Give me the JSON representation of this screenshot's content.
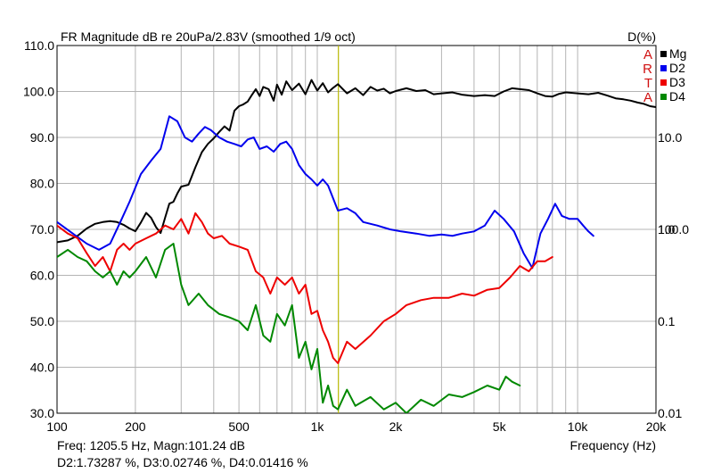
{
  "chart_data": {
    "type": "line",
    "title": "FR Magnitude dB re 20uPa/2.83V (smoothed 1/9 oct)",
    "right_axis_title": "D(%)",
    "xlabel": "Frequency (Hz)",
    "x_scale": "log",
    "xlim": [
      100,
      20000
    ],
    "ylim": [
      30,
      110
    ],
    "y2_scale": "log",
    "y2lim": [
      0.01,
      100
    ],
    "x_ticks": [
      {
        "value": 100,
        "label": "100"
      },
      {
        "value": 200,
        "label": "200"
      },
      {
        "value": 500,
        "label": "500"
      },
      {
        "value": 1000,
        "label": "1k"
      },
      {
        "value": 2000,
        "label": "2k"
      },
      {
        "value": 5000,
        "label": "5k"
      },
      {
        "value": 10000,
        "label": "10k"
      },
      {
        "value": 20000,
        "label": "20k"
      }
    ],
    "y_ticks": [
      {
        "value": 30,
        "label": "30.0"
      },
      {
        "value": 40,
        "label": "40.0"
      },
      {
        "value": 50,
        "label": "50.0"
      },
      {
        "value": 60,
        "label": "60.0"
      },
      {
        "value": 70,
        "label": "70.0"
      },
      {
        "value": 80,
        "label": "80.0"
      },
      {
        "value": 90,
        "label": "90.0"
      },
      {
        "value": 100,
        "label": "100.0"
      },
      {
        "value": 110,
        "label": "110.0"
      }
    ],
    "y2_ticks": [
      {
        "value": 0.01,
        "label": "0.01"
      },
      {
        "value": 0.1,
        "label": "0.1"
      },
      {
        "value": 1,
        "label": "1.0"
      },
      {
        "value": 10,
        "label": "10.0"
      },
      {
        "value": 100,
        "label": "100.0"
      }
    ],
    "cursor_x": 1205.5,
    "watermark": "ARTA",
    "grid": true,
    "legend_position": "top-right",
    "series": [
      {
        "name": "Mg",
        "color": "#000000",
        "axis": "left",
        "x": [
          100,
          110,
          120,
          130,
          140,
          150,
          160,
          170,
          180,
          190,
          200,
          210,
          220,
          230,
          240,
          250,
          260,
          270,
          280,
          290,
          300,
          320,
          340,
          360,
          380,
          400,
          420,
          440,
          460,
          480,
          500,
          520,
          540,
          560,
          580,
          600,
          620,
          650,
          680,
          700,
          730,
          760,
          800,
          850,
          900,
          950,
          1000,
          1050,
          1100,
          1150,
          1200,
          1300,
          1400,
          1500,
          1600,
          1700,
          1800,
          1900,
          2000,
          2200,
          2400,
          2600,
          2800,
          3000,
          3300,
          3600,
          4000,
          4400,
          4800,
          5200,
          5600,
          6000,
          6500,
          7000,
          7500,
          8000,
          8500,
          9000,
          10000,
          11000,
          12000,
          13000,
          14000,
          15000,
          16000,
          17000,
          18000,
          19000,
          20000
        ],
        "y": [
          67.2,
          67.6,
          68.6,
          70.2,
          71.2,
          71.6,
          71.8,
          71.6,
          71.0,
          70.2,
          69.6,
          71.5,
          73.6,
          72.5,
          70.5,
          69.2,
          72.5,
          75.6,
          76.0,
          77.8,
          79.3,
          79.7,
          83.5,
          86.8,
          88.6,
          89.8,
          91.2,
          92.4,
          91.5,
          95.8,
          96.8,
          97.2,
          97.8,
          99.2,
          100.5,
          99.0,
          101.0,
          100.5,
          98.0,
          101.5,
          99.3,
          102.2,
          100.3,
          101.7,
          99.4,
          102.5,
          100.2,
          101.8,
          99.8,
          100.8,
          101.6,
          99.6,
          100.7,
          99.2,
          101.0,
          100.2,
          100.6,
          99.6,
          100.1,
          100.7,
          100.1,
          100.3,
          99.4,
          99.6,
          99.8,
          99.3,
          99.0,
          99.2,
          99.0,
          100.0,
          100.7,
          100.5,
          100.3,
          99.6,
          99.0,
          98.9,
          99.5,
          99.8,
          99.6,
          99.4,
          99.7,
          99.1,
          98.5,
          98.3,
          98.0,
          97.6,
          97.3,
          96.8,
          96.6
        ]
      },
      {
        "name": "D2",
        "color": "#0000ee",
        "axis": "right",
        "x": [
          100,
          115,
          130,
          145,
          160,
          175,
          190,
          210,
          230,
          250,
          270,
          290,
          310,
          330,
          350,
          370,
          390,
          420,
          450,
          480,
          510,
          540,
          570,
          600,
          640,
          680,
          720,
          760,
          800,
          850,
          900,
          950,
          1000,
          1050,
          1100,
          1200,
          1300,
          1400,
          1500,
          1700,
          1900,
          2100,
          2400,
          2700,
          3000,
          3300,
          3600,
          4000,
          4400,
          4800,
          5200,
          5700,
          6200,
          6700,
          7200,
          7700,
          8200,
          8700,
          9300,
          10000,
          10500,
          11000,
          11500
        ],
        "y": [
          1.2,
          0.9,
          0.7,
          0.6,
          0.7,
          1.2,
          2.0,
          4.0,
          5.6,
          7.5,
          17.0,
          15.0,
          10.0,
          9.0,
          11.0,
          13.0,
          12.0,
          10.0,
          9.0,
          8.5,
          8.0,
          9.5,
          10.0,
          7.5,
          8.0,
          7.0,
          8.5,
          9.0,
          7.5,
          5.0,
          4.0,
          3.5,
          3.0,
          3.5,
          3.0,
          1.6,
          1.7,
          1.5,
          1.2,
          1.1,
          1.0,
          0.95,
          0.9,
          0.85,
          0.88,
          0.85,
          0.9,
          0.95,
          1.1,
          1.6,
          1.3,
          0.95,
          0.55,
          0.38,
          0.9,
          1.3,
          1.9,
          1.4,
          1.3,
          1.3,
          1.1,
          0.95,
          0.85
        ]
      },
      {
        "name": "D3",
        "color": "#ee0000",
        "axis": "right",
        "x": [
          100,
          110,
          120,
          130,
          140,
          150,
          160,
          170,
          180,
          190,
          200,
          220,
          240,
          260,
          280,
          300,
          320,
          340,
          360,
          380,
          400,
          430,
          460,
          500,
          540,
          580,
          620,
          660,
          700,
          750,
          800,
          850,
          900,
          950,
          1000,
          1050,
          1100,
          1150,
          1200,
          1300,
          1400,
          1600,
          1800,
          2000,
          2200,
          2500,
          2800,
          3200,
          3600,
          4000,
          4500,
          5000,
          5500,
          6000,
          6500,
          7000,
          7500,
          8000
        ],
        "y": [
          1.1,
          0.9,
          0.8,
          0.55,
          0.4,
          0.5,
          0.35,
          0.6,
          0.7,
          0.6,
          0.7,
          0.8,
          0.9,
          1.1,
          1.0,
          1.3,
          0.9,
          1.5,
          1.2,
          0.9,
          0.8,
          0.85,
          0.7,
          0.65,
          0.6,
          0.35,
          0.3,
          0.2,
          0.3,
          0.25,
          0.3,
          0.2,
          0.25,
          0.12,
          0.13,
          0.08,
          0.06,
          0.04,
          0.035,
          0.06,
          0.05,
          0.07,
          0.1,
          0.12,
          0.15,
          0.17,
          0.18,
          0.18,
          0.2,
          0.19,
          0.22,
          0.23,
          0.3,
          0.4,
          0.35,
          0.45,
          0.45,
          0.5
        ]
      },
      {
        "name": "D4",
        "color": "#008800",
        "axis": "right",
        "x": [
          100,
          110,
          120,
          130,
          140,
          150,
          160,
          170,
          180,
          190,
          200,
          220,
          240,
          260,
          280,
          300,
          320,
          350,
          380,
          420,
          460,
          500,
          540,
          580,
          620,
          660,
          700,
          750,
          800,
          850,
          900,
          950,
          1000,
          1050,
          1100,
          1150,
          1200,
          1300,
          1400,
          1600,
          1800,
          2000,
          2200,
          2500,
          2800,
          3200,
          3600,
          4000,
          4500,
          5000,
          5300,
          5600,
          6000
        ],
        "y": [
          0.5,
          0.6,
          0.5,
          0.45,
          0.35,
          0.3,
          0.35,
          0.25,
          0.35,
          0.3,
          0.35,
          0.5,
          0.3,
          0.6,
          0.7,
          0.25,
          0.15,
          0.2,
          0.15,
          0.12,
          0.11,
          0.1,
          0.08,
          0.15,
          0.07,
          0.06,
          0.12,
          0.09,
          0.15,
          0.04,
          0.06,
          0.03,
          0.05,
          0.013,
          0.02,
          0.012,
          0.011,
          0.018,
          0.012,
          0.015,
          0.011,
          0.013,
          0.01,
          0.014,
          0.012,
          0.016,
          0.015,
          0.017,
          0.02,
          0.018,
          0.025,
          0.022,
          0.02
        ]
      }
    ]
  },
  "readout": {
    "line1": "Freq: 1205.5 Hz, Magn:101.24 dB",
    "line2": "D2:1.73287 %, D3:0.02746 %, D4:0.01416 %"
  }
}
